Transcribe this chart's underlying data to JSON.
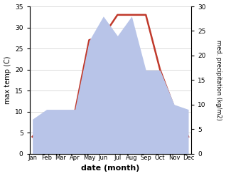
{
  "months": [
    "Jan",
    "Feb",
    "Mar",
    "Apr",
    "May",
    "Jun",
    "Jul",
    "Aug",
    "Sep",
    "Oct",
    "Nov",
    "Dec"
  ],
  "temperature": [
    4,
    8,
    10,
    10,
    27,
    28,
    33,
    33,
    33,
    20,
    11,
    4
  ],
  "precipitation": [
    7,
    9,
    9,
    9,
    23,
    28,
    24,
    28,
    17,
    17,
    10,
    9
  ],
  "temp_color": "#c0392b",
  "precip_fill_color": "#b8c4e8",
  "temp_ylim": [
    0,
    35
  ],
  "precip_ylim": [
    0,
    30
  ],
  "temp_yticks": [
    0,
    5,
    10,
    15,
    20,
    25,
    30,
    35
  ],
  "precip_yticks": [
    0,
    5,
    10,
    15,
    20,
    25,
    30
  ],
  "xlabel": "date (month)",
  "ylabel_left": "max temp (C)",
  "ylabel_right": "med. precipitation (kg/m2)",
  "line_width": 1.8,
  "background_color": "#ffffff",
  "grid_color": "#cccccc"
}
